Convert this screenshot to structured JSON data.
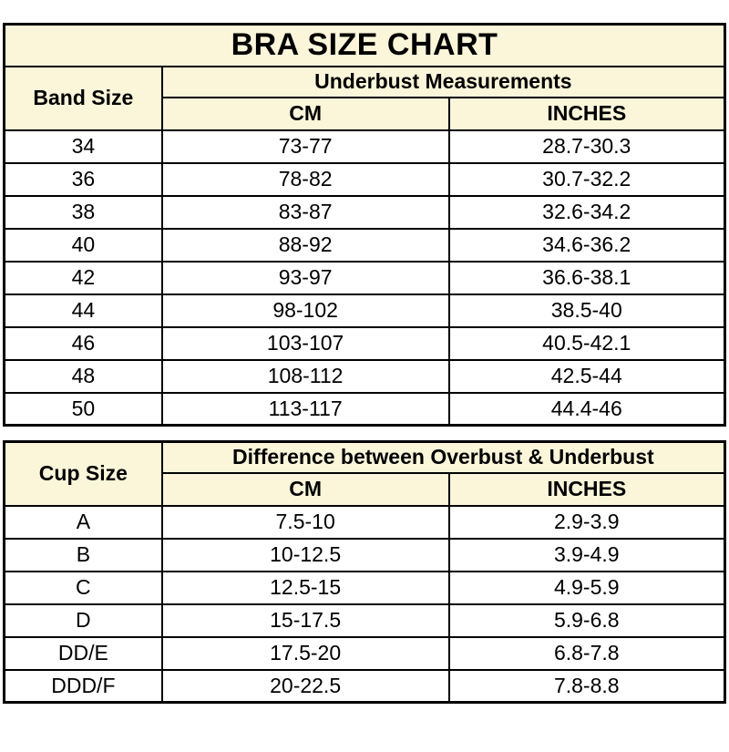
{
  "colors": {
    "header_bg": "#FBF6DA",
    "border": "#000000",
    "page_bg": "#FFFFFF"
  },
  "title": "BRA SIZE CHART",
  "band_table": {
    "row_header": "Band Size",
    "group_header": "Underbust Measurements",
    "col_cm": "CM",
    "col_inches": "INCHES",
    "rows": [
      {
        "size": "34",
        "cm": "73-77",
        "inches": "28.7-30.3"
      },
      {
        "size": "36",
        "cm": "78-82",
        "inches": "30.7-32.2"
      },
      {
        "size": "38",
        "cm": "83-87",
        "inches": "32.6-34.2"
      },
      {
        "size": "40",
        "cm": "88-92",
        "inches": "34.6-36.2"
      },
      {
        "size": "42",
        "cm": "93-97",
        "inches": "36.6-38.1"
      },
      {
        "size": "44",
        "cm": "98-102",
        "inches": "38.5-40"
      },
      {
        "size": "46",
        "cm": "103-107",
        "inches": "40.5-42.1"
      },
      {
        "size": "48",
        "cm": "108-112",
        "inches": "42.5-44"
      },
      {
        "size": "50",
        "cm": "113-117",
        "inches": "44.4-46"
      }
    ]
  },
  "cup_table": {
    "row_header": "Cup Size",
    "group_header": "Difference between Overbust & Underbust",
    "col_cm": "CM",
    "col_inches": "INCHES",
    "rows": [
      {
        "size": "A",
        "cm": "7.5-10",
        "inches": "2.9-3.9"
      },
      {
        "size": "B",
        "cm": "10-12.5",
        "inches": "3.9-4.9"
      },
      {
        "size": "C",
        "cm": "12.5-15",
        "inches": "4.9-5.9"
      },
      {
        "size": "D",
        "cm": "15-17.5",
        "inches": "5.9-6.8"
      },
      {
        "size": "DD/E",
        "cm": "17.5-20",
        "inches": "6.8-7.8"
      },
      {
        "size": "DDD/F",
        "cm": "20-22.5",
        "inches": "7.8-8.8"
      }
    ]
  }
}
